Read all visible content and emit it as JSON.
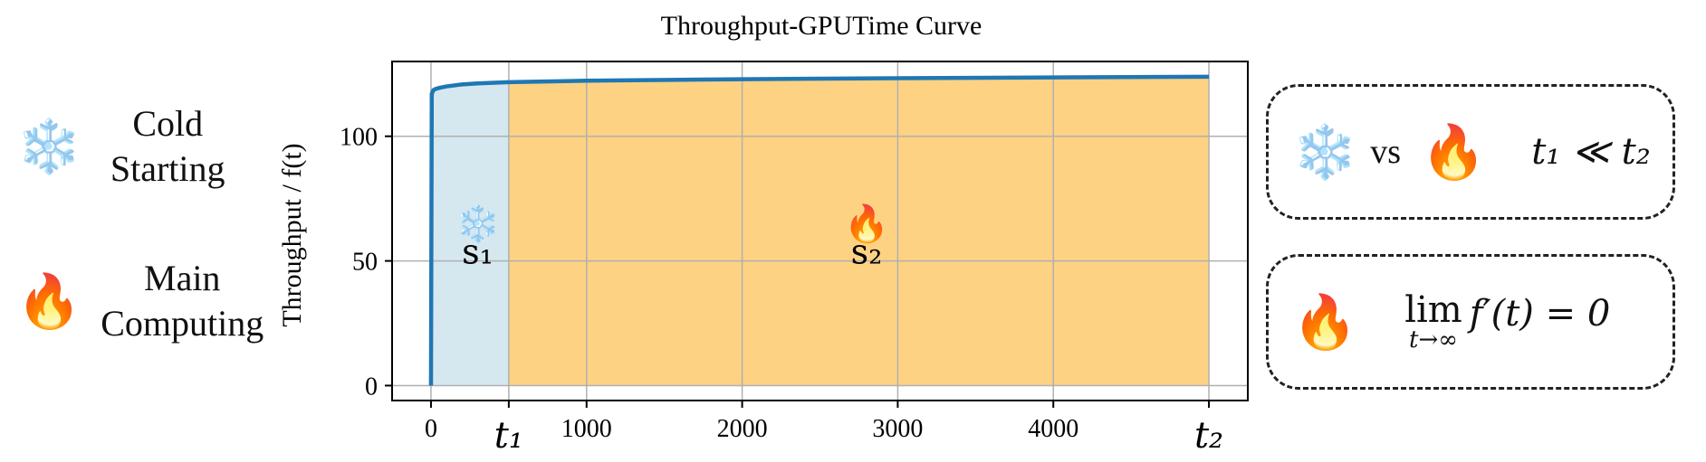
{
  "legend": {
    "cold": {
      "icon": "snowflake-icon",
      "glyph": "❄️",
      "label_line1": "Cold",
      "label_line2": "Starting"
    },
    "main": {
      "icon": "fire-icon",
      "glyph": "🔥",
      "label_line1": "Main",
      "label_line2": "Computing"
    }
  },
  "chart_data": {
    "type": "area",
    "title": "Throughput-GPUTime Curve",
    "xlabel": "",
    "ylabel": "Throughput / f(t)",
    "xlim": [
      -250,
      5250
    ],
    "ylim": [
      -6,
      130
    ],
    "x_ticks": [
      0,
      1000,
      2000,
      3000,
      4000
    ],
    "y_ticks": [
      0,
      50,
      100
    ],
    "x_tick_labels": [
      "0",
      "1000",
      "2000",
      "3000",
      "4000"
    ],
    "y_tick_labels": [
      "0",
      "50",
      "100"
    ],
    "grid": true,
    "markers": [
      {
        "name": "t1",
        "label": "t₁",
        "x": 500
      },
      {
        "name": "t2",
        "label": "t₂",
        "x": 5000
      }
    ],
    "series": [
      {
        "values_x": [
          0,
          5,
          15,
          30,
          60,
          100,
          200,
          300,
          500,
          1000,
          2000,
          3000,
          4000,
          5000
        ],
        "values_y": [
          0,
          117,
          118.5,
          119,
          119.5,
          120,
          120.8,
          121.2,
          121.7,
          122.3,
          122.9,
          123.3,
          123.6,
          123.9
        ],
        "color": "#1f77b4"
      }
    ],
    "regions": [
      {
        "name": "s1",
        "label": "s₁",
        "icon": "❄️",
        "from": 0,
        "to": 500,
        "color": "#d5e8f0"
      },
      {
        "name": "s2",
        "label": "s₂",
        "icon": "🔥",
        "from": 500,
        "to": 5000,
        "color": "#fed283"
      }
    ]
  },
  "boxes": {
    "compare": {
      "left_icon": "❄️",
      "vs": "vs",
      "right_icon": "🔥",
      "formula": "t₁ ≪ t₂"
    },
    "limit": {
      "icon": "🔥",
      "lim": "lim",
      "sub": "t→∞",
      "expr": "f′(t) = 0"
    }
  },
  "colors": {
    "line": "#1f77b4",
    "cold_fill": "#d5e8f0",
    "main_fill": "#fed283",
    "grid": "#b0b0b0"
  }
}
